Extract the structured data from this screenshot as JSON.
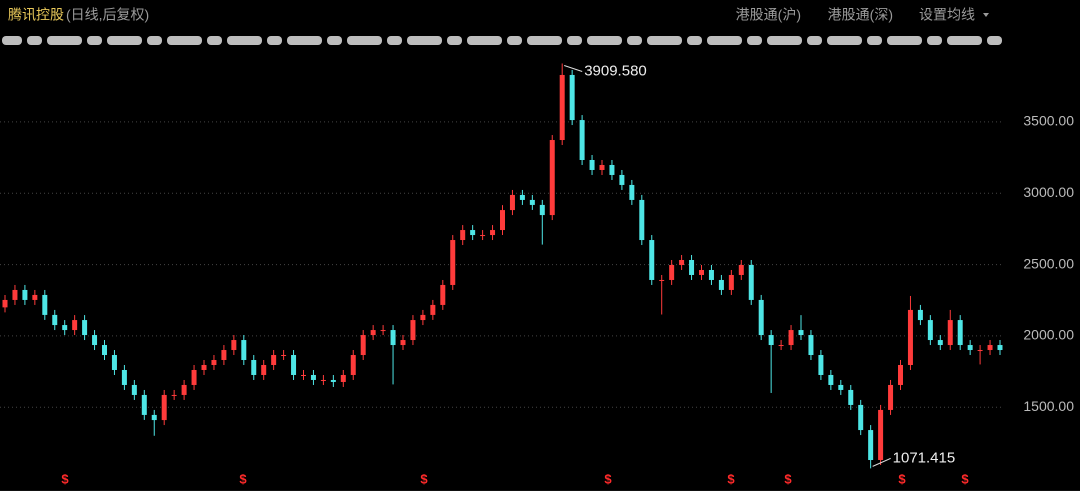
{
  "header": {
    "title": "腾讯控股",
    "subtitle": "(日线,后复权)",
    "buttons": [
      "港股通(沪)",
      "港股通(深)",
      "设置均线"
    ]
  },
  "chart_data": {
    "type": "candlestick",
    "up_color": "#ff3b3b",
    "down_color": "#4ee6e6",
    "grid": true,
    "ylim": [
      1060,
      3990
    ],
    "yticks": [
      {
        "value": 1500,
        "label": "1500.00"
      },
      {
        "value": 2000,
        "label": "2000.00"
      },
      {
        "value": 2500,
        "label": "2500.00"
      },
      {
        "value": 3000,
        "label": "3000.00"
      },
      {
        "value": 3500,
        "label": "3500.00"
      }
    ],
    "open": [
      2200,
      2252,
      2322,
      2252,
      2287,
      2147,
      2076,
      2041,
      2111,
      2006,
      1936,
      1866,
      1761,
      1656,
      1586,
      1446,
      1410,
      1586,
      1586,
      1656,
      1761,
      1796,
      1831,
      1901,
      1971,
      1831,
      1726,
      1796,
      1866,
      1866,
      1726,
      1726,
      1691,
      1691,
      1677,
      1726,
      1866,
      2006,
      2041,
      2041,
      1936,
      1971,
      2111,
      2147,
      2217,
      2357,
      2672,
      2742,
      2707,
      2707,
      2742,
      2882,
      2988,
      2953,
      2918,
      2847,
      3373,
      3829,
      3513,
      3233,
      3163,
      3198,
      3128,
      3058,
      2953,
      2672,
      2392,
      2392,
      2497,
      2532,
      2427,
      2462,
      2392,
      2322,
      2427,
      2497,
      2252,
      2006,
      1936,
      1936,
      2041,
      2006,
      1866,
      1726,
      1656,
      1621,
      1516,
      1340,
      1130,
      1481,
      1656,
      1796,
      2182,
      2111,
      1971,
      1936,
      2111,
      1936,
      1901,
      1901,
      1936
    ],
    "close": [
      2252,
      2322,
      2252,
      2287,
      2147,
      2076,
      2041,
      2111,
      2006,
      1936,
      1866,
      1761,
      1656,
      1586,
      1446,
      1410,
      1586,
      1586,
      1656,
      1761,
      1796,
      1831,
      1901,
      1971,
      1831,
      1726,
      1796,
      1866,
      1866,
      1726,
      1726,
      1691,
      1691,
      1677,
      1726,
      1866,
      2006,
      2041,
      2041,
      1936,
      1971,
      2111,
      2147,
      2217,
      2357,
      2672,
      2742,
      2707,
      2707,
      2742,
      2882,
      2988,
      2953,
      2918,
      2847,
      3373,
      3829,
      3513,
      3233,
      3163,
      3198,
      3128,
      3058,
      2953,
      2672,
      2392,
      2392,
      2497,
      2532,
      2427,
      2462,
      2392,
      2322,
      2427,
      2497,
      2252,
      2006,
      1936,
      1936,
      2041,
      2006,
      1866,
      1726,
      1656,
      1621,
      1516,
      1340,
      1130,
      1481,
      1656,
      1796,
      2182,
      2111,
      1971,
      1936,
      2111,
      1936,
      1901,
      1901,
      1936,
      1901
    ],
    "high": [
      2287,
      2357,
      2357,
      2322,
      2322,
      2182,
      2111,
      2146,
      2146,
      2041,
      1971,
      1901,
      1796,
      1691,
      1621,
      1481,
      1621,
      1621,
      1691,
      1796,
      1831,
      1866,
      1936,
      2006,
      2006,
      1866,
      1831,
      1901,
      1901,
      1901,
      1761,
      1761,
      1726,
      1726,
      1761,
      1901,
      2041,
      2076,
      2076,
      2076,
      2006,
      2146,
      2182,
      2252,
      2392,
      2707,
      2777,
      2777,
      2742,
      2777,
      2917,
      3023,
      3023,
      2988,
      2953,
      3408,
      3909.58,
      3864,
      3548,
      3268,
      3233,
      3233,
      3163,
      3093,
      2988,
      2707,
      2427,
      2532,
      2567,
      2567,
      2497,
      2497,
      2427,
      2462,
      2532,
      2532,
      2287,
      2041,
      1971,
      2076,
      2146,
      2041,
      1901,
      1761,
      1691,
      1656,
      1551,
      1375,
      1516,
      1691,
      1831,
      2280,
      2217,
      2146,
      2006,
      2182,
      2146,
      1971,
      1936,
      1971,
      1971
    ],
    "low": [
      2165,
      2217,
      2217,
      2217,
      2112,
      2041,
      2006,
      2006,
      1971,
      1901,
      1831,
      1726,
      1621,
      1551,
      1411,
      1300,
      1375,
      1551,
      1551,
      1621,
      1726,
      1761,
      1796,
      1866,
      1796,
      1691,
      1691,
      1761,
      1831,
      1691,
      1691,
      1656,
      1656,
      1642,
      1642,
      1691,
      1831,
      1971,
      2006,
      1660,
      1901,
      1936,
      2076,
      2112,
      2182,
      2322,
      2637,
      2672,
      2672,
      2672,
      2707,
      2847,
      2918,
      2883,
      2640,
      2812,
      3338,
      3478,
      3198,
      3128,
      3128,
      3093,
      3023,
      2918,
      2637,
      2357,
      2150,
      2357,
      2462,
      2392,
      2392,
      2357,
      2287,
      2287,
      2392,
      2217,
      1971,
      1600,
      1901,
      1901,
      1971,
      1831,
      1691,
      1621,
      1586,
      1481,
      1305,
      1071.415,
      1095,
      1446,
      1621,
      1761,
      2076,
      1936,
      1901,
      1901,
      1901,
      1866,
      1800,
      1866,
      1866
    ],
    "annotations": [
      {
        "value": 3909.58,
        "label": "3909.580"
      },
      {
        "value": 1071.415,
        "label": "1071.415"
      }
    ],
    "dividend_markers": [
      "$",
      "$",
      "$",
      "$",
      "$",
      "$",
      "$",
      "$"
    ]
  }
}
